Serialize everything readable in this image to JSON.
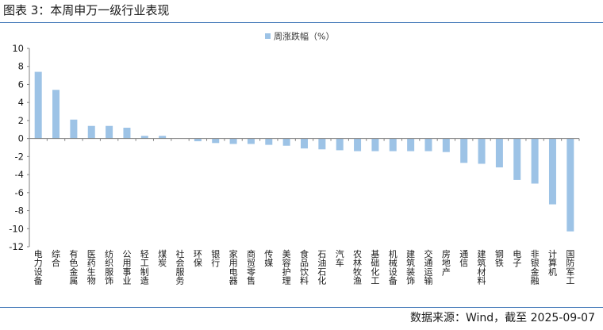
{
  "header": {
    "title": "图表 3：本周申万一级行业表现"
  },
  "footer": {
    "source": "数据来源：Wind，截至 2025-09-07"
  },
  "colors": {
    "bar": "#9dc3e6",
    "rule": "#3d74b6",
    "axis": "#7f7f7f"
  },
  "chart_data": {
    "type": "bar",
    "categories": [
      "电力设备",
      "综合",
      "有色金属",
      "医药生物",
      "纺织服饰",
      "公用事业",
      "轻工制造",
      "煤炭",
      "社会服务",
      "环保",
      "银行",
      "家用电器",
      "商贸零售",
      "传媒",
      "美容护理",
      "食品饮料",
      "石油石化",
      "汽车",
      "农林牧渔",
      "基础化工",
      "机械设备",
      "建筑装饰",
      "交通运输",
      "房地产",
      "通信",
      "建筑材料",
      "钢铁",
      "电子",
      "非银金融",
      "计算机",
      "国防军工"
    ],
    "series": [
      {
        "name": "周涨跌幅（%）",
        "values": [
          7.4,
          5.4,
          2.1,
          1.4,
          1.4,
          1.2,
          0.3,
          0.3,
          0.0,
          -0.3,
          -0.5,
          -0.6,
          -0.6,
          -0.7,
          -0.8,
          -1.1,
          -1.2,
          -1.3,
          -1.4,
          -1.4,
          -1.4,
          -1.4,
          -1.4,
          -1.5,
          -2.7,
          -2.8,
          -3.2,
          -4.6,
          -5.0,
          -7.3,
          -10.3
        ]
      }
    ],
    "ylim": [
      -12,
      10
    ],
    "yticks": [
      10,
      8,
      6,
      4,
      2,
      0,
      -2,
      -4,
      -6,
      -8,
      -10,
      -12
    ],
    "legend": "top-center",
    "grid": false,
    "xlabel": "",
    "ylabel": ""
  }
}
